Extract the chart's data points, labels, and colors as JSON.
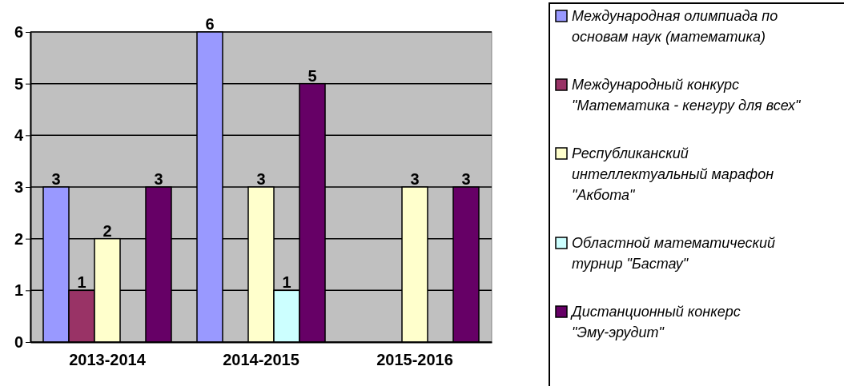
{
  "chart_data": {
    "type": "bar",
    "categories": [
      "2013-2014",
      "2014-2015",
      "2015-2016"
    ],
    "series": [
      {
        "name": "Международная олимпиада по основам наук (математика)",
        "color": "#9999ff",
        "values": [
          3,
          6,
          null
        ]
      },
      {
        "name": "Международный конкурс \"Математика - кенгуру для всех\"",
        "color": "#993366",
        "values": [
          1,
          null,
          null
        ]
      },
      {
        "name": "Республиканский интеллектуальный марафон \"Акбота\"",
        "color": "#ffffcc",
        "values": [
          2,
          3,
          3
        ]
      },
      {
        "name": "Областной математический турнир \"Бастау\"",
        "color": "#ccffff",
        "values": [
          null,
          1,
          null
        ]
      },
      {
        "name": "Дистанционный конкерс \"Эму-эрудит\"",
        "color": "#660066",
        "values": [
          3,
          5,
          3
        ]
      }
    ],
    "ylim": [
      0,
      6
    ],
    "yticks": [
      0,
      1,
      2,
      3,
      4,
      5,
      6
    ],
    "grid": "y",
    "legend": "right",
    "data_labels": true
  }
}
